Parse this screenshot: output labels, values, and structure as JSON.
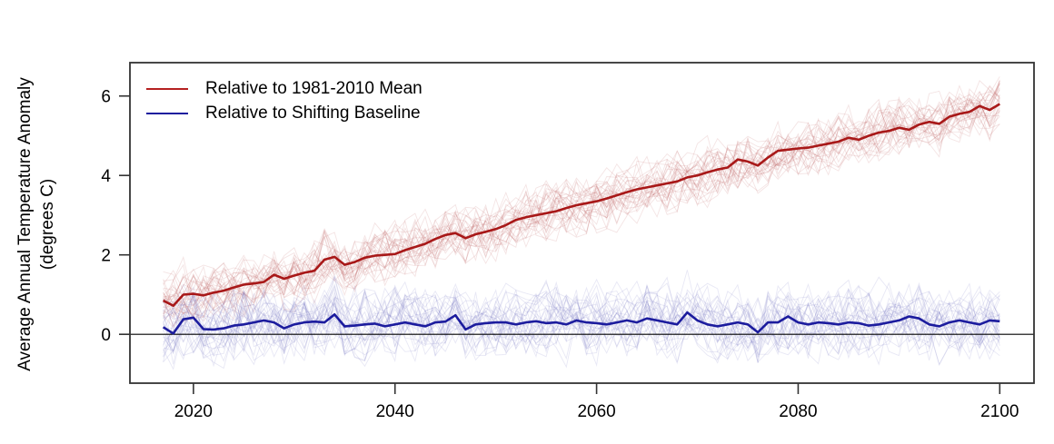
{
  "figure": {
    "y_axis_title_line1": "Average Annual Temperature Anomaly",
    "y_axis_title_line2": "(degrees C)"
  },
  "legend": {
    "items": [
      {
        "label": "Relative to 1981-2010 Mean",
        "color": "#b52020"
      },
      {
        "label": "Relative to Shifting Baseline",
        "color": "#1c1c9e"
      }
    ]
  },
  "chart_data": {
    "type": "line",
    "title": "",
    "xlabel": "",
    "ylabel": "Average Annual Temperature Anomaly (degrees C)",
    "x_start": 2017,
    "x_end": 2100,
    "x_ticks": [
      "2020",
      "2040",
      "2060",
      "2080",
      "2100"
    ],
    "x_tick_values": [
      2020,
      2040,
      2060,
      2080,
      2100
    ],
    "y_ticks": [
      "0",
      "2",
      "4",
      "6"
    ],
    "y_tick_values": [
      0,
      2,
      4,
      6
    ],
    "xlim": [
      2013.7,
      2103.4
    ],
    "ylim": [
      -1.23,
      6.84
    ],
    "zero_line": 0,
    "grid": false,
    "legend_position": "top-left-inside",
    "axis_color": "#333333",
    "zero_line_color": "#000000",
    "series": [
      {
        "name": "Relative to 1981-2010 Mean",
        "color": "#a81818",
        "faint_color": "#b85555",
        "values": [
          0.85,
          0.72,
          1.0,
          1.02,
          0.98,
          1.05,
          1.1,
          1.18,
          1.25,
          1.28,
          1.32,
          1.5,
          1.4,
          1.48,
          1.55,
          1.6,
          1.88,
          1.95,
          1.75,
          1.82,
          1.93,
          1.98,
          2.0,
          2.02,
          2.12,
          2.2,
          2.28,
          2.4,
          2.5,
          2.55,
          2.42,
          2.52,
          2.58,
          2.65,
          2.75,
          2.88,
          2.95,
          3.0,
          3.05,
          3.1,
          3.18,
          3.25,
          3.3,
          3.35,
          3.42,
          3.5,
          3.58,
          3.65,
          3.7,
          3.75,
          3.8,
          3.85,
          3.95,
          4.0,
          4.08,
          4.15,
          4.2,
          4.4,
          4.35,
          4.25,
          4.45,
          4.62,
          4.65,
          4.68,
          4.7,
          4.75,
          4.8,
          4.85,
          4.95,
          4.9,
          5.0,
          5.08,
          5.12,
          5.2,
          5.15,
          5.28,
          5.35,
          5.3,
          5.48,
          5.55,
          5.6,
          5.75,
          5.65,
          5.8
        ]
      },
      {
        "name": "Relative to Shifting Baseline",
        "color": "#1c1c9e",
        "faint_color": "#7070c0",
        "values": [
          0.18,
          0.02,
          0.38,
          0.42,
          0.13,
          0.12,
          0.15,
          0.22,
          0.25,
          0.3,
          0.35,
          0.3,
          0.15,
          0.25,
          0.3,
          0.32,
          0.3,
          0.5,
          0.2,
          0.22,
          0.25,
          0.27,
          0.2,
          0.25,
          0.3,
          0.25,
          0.2,
          0.3,
          0.32,
          0.48,
          0.12,
          0.25,
          0.28,
          0.3,
          0.3,
          0.25,
          0.3,
          0.33,
          0.28,
          0.3,
          0.25,
          0.35,
          0.3,
          0.28,
          0.25,
          0.3,
          0.35,
          0.3,
          0.4,
          0.35,
          0.3,
          0.25,
          0.55,
          0.35,
          0.25,
          0.2,
          0.25,
          0.3,
          0.25,
          0.05,
          0.3,
          0.3,
          0.45,
          0.3,
          0.25,
          0.3,
          0.28,
          0.25,
          0.3,
          0.28,
          0.22,
          0.25,
          0.3,
          0.35,
          0.45,
          0.4,
          0.25,
          0.2,
          0.3,
          0.35,
          0.3,
          0.25,
          0.35,
          0.33
        ]
      }
    ],
    "ensemble": {
      "members": 32,
      "noise_amp": [
        0.85,
        1.05
      ],
      "opacity": 0.16
    }
  }
}
